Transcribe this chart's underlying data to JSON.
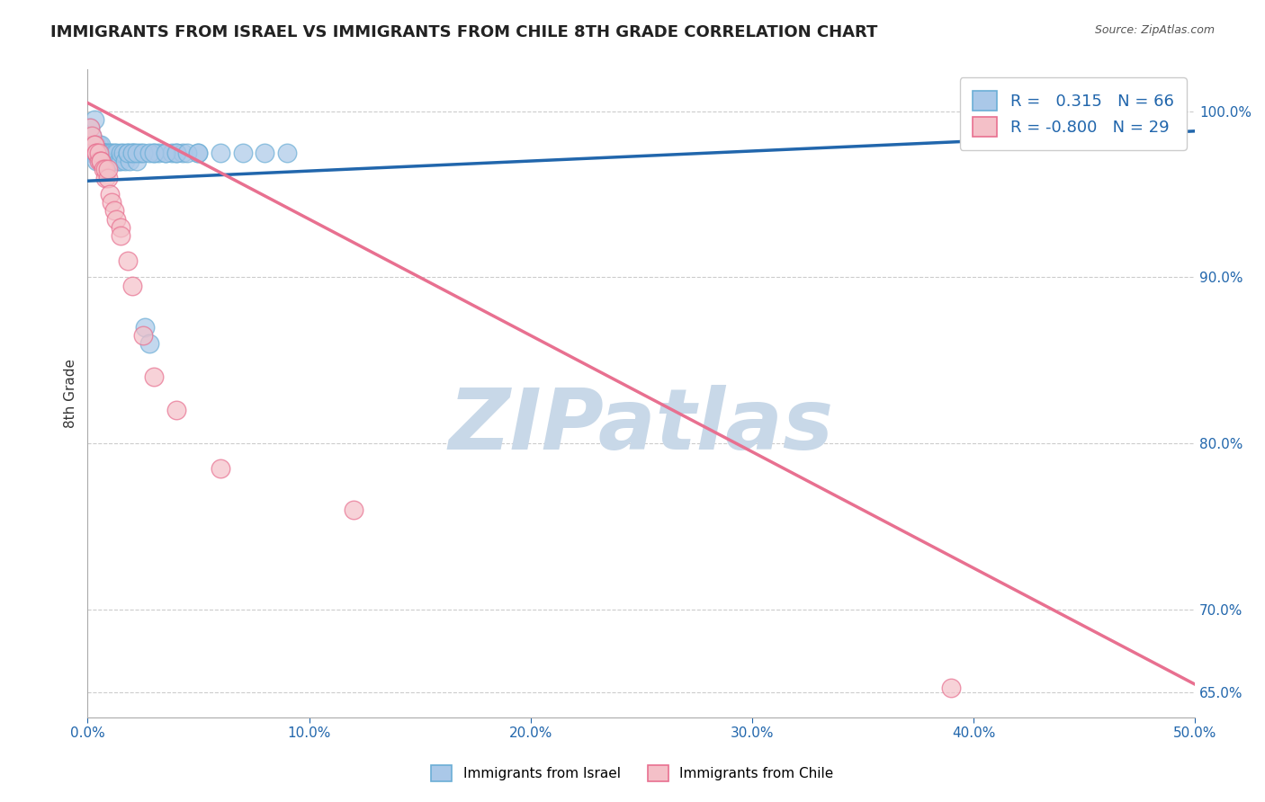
{
  "title": "IMMIGRANTS FROM ISRAEL VS IMMIGRANTS FROM CHILE 8TH GRADE CORRELATION CHART",
  "source_text": "Source: ZipAtlas.com",
  "ylabel": "8th Grade",
  "xlim": [
    0.0,
    0.5
  ],
  "ylim": [
    0.635,
    1.025
  ],
  "xtick_labels": [
    "0.0%",
    "10.0%",
    "20.0%",
    "30.0%",
    "40.0%",
    "50.0%"
  ],
  "xtick_values": [
    0.0,
    0.1,
    0.2,
    0.3,
    0.4,
    0.5
  ],
  "ytick_vals": [
    0.65,
    0.7,
    0.8,
    0.9,
    1.0
  ],
  "ytick_lbls": [
    "65.0%",
    "70.0%",
    "80.0%",
    "90.0%",
    "100.0%"
  ],
  "background_color": "#ffffff",
  "grid_color": "#cccccc",
  "title_fontsize": 13,
  "watermark_text": "ZIPatlas",
  "watermark_color": "#c8d8e8",
  "israel": {
    "label": "Immigrants from Israel",
    "R": 0.315,
    "N": 66,
    "marker_facecolor": "#aac8e8",
    "marker_edgecolor": "#6baed6",
    "line_color": "#2166ac",
    "x": [
      0.001,
      0.002,
      0.002,
      0.003,
      0.003,
      0.003,
      0.004,
      0.004,
      0.004,
      0.005,
      0.005,
      0.005,
      0.006,
      0.006,
      0.006,
      0.006,
      0.007,
      0.007,
      0.007,
      0.008,
      0.008,
      0.008,
      0.009,
      0.009,
      0.01,
      0.01,
      0.011,
      0.011,
      0.012,
      0.012,
      0.013,
      0.013,
      0.014,
      0.015,
      0.015,
      0.016,
      0.017,
      0.018,
      0.019,
      0.02,
      0.021,
      0.022,
      0.024,
      0.026,
      0.028,
      0.03,
      0.032,
      0.035,
      0.038,
      0.04,
      0.043,
      0.05,
      0.06,
      0.07,
      0.08,
      0.09,
      0.018,
      0.02,
      0.022,
      0.025,
      0.028,
      0.03,
      0.035,
      0.04,
      0.045,
      0.05
    ],
    "y": [
      0.99,
      0.985,
      0.975,
      0.98,
      0.975,
      0.995,
      0.975,
      0.98,
      0.97,
      0.975,
      0.975,
      0.98,
      0.975,
      0.98,
      0.97,
      0.975,
      0.975,
      0.97,
      0.975,
      0.975,
      0.97,
      0.975,
      0.97,
      0.975,
      0.97,
      0.975,
      0.97,
      0.975,
      0.97,
      0.975,
      0.97,
      0.975,
      0.97,
      0.97,
      0.975,
      0.975,
      0.97,
      0.975,
      0.97,
      0.975,
      0.975,
      0.97,
      0.975,
      0.87,
      0.86,
      0.975,
      0.975,
      0.975,
      0.975,
      0.975,
      0.975,
      0.975,
      0.975,
      0.975,
      0.975,
      0.975,
      0.975,
      0.975,
      0.975,
      0.975,
      0.975,
      0.975,
      0.975,
      0.975,
      0.975,
      0.975
    ],
    "trend_x": [
      0.0,
      0.5
    ],
    "trend_y": [
      0.958,
      0.988
    ]
  },
  "chile": {
    "label": "Immigrants from Chile",
    "R": -0.8,
    "N": 29,
    "marker_facecolor": "#f4c0c8",
    "marker_edgecolor": "#e87090",
    "line_color": "#e87090",
    "x": [
      0.001,
      0.002,
      0.003,
      0.003,
      0.004,
      0.004,
      0.005,
      0.005,
      0.006,
      0.006,
      0.007,
      0.008,
      0.008,
      0.009,
      0.009,
      0.01,
      0.011,
      0.012,
      0.013,
      0.015,
      0.015,
      0.018,
      0.02,
      0.025,
      0.03,
      0.04,
      0.06,
      0.12,
      0.39
    ],
    "y": [
      0.99,
      0.985,
      0.98,
      0.98,
      0.975,
      0.975,
      0.97,
      0.975,
      0.97,
      0.97,
      0.965,
      0.96,
      0.965,
      0.96,
      0.965,
      0.95,
      0.945,
      0.94,
      0.935,
      0.93,
      0.925,
      0.91,
      0.895,
      0.865,
      0.84,
      0.82,
      0.785,
      0.76,
      0.653
    ],
    "trend_x": [
      0.0,
      0.5
    ],
    "trend_y": [
      1.005,
      0.655
    ]
  },
  "title_color": "#222222",
  "axis_tick_color": "#2166ac",
  "right_axis_color": "#2166ac"
}
